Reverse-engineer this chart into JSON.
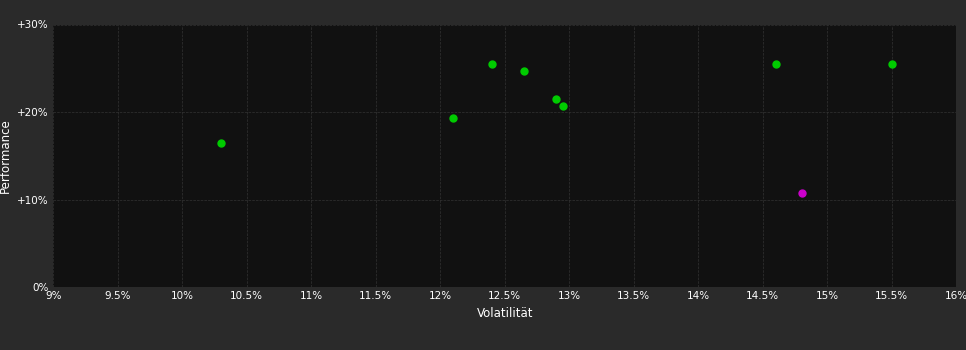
{
  "background_color": "#111111",
  "plot_bg_color": "#111111",
  "outer_bg_color": "#2a2a2a",
  "grid_color": "#333333",
  "grid_style": "--",
  "xlabel": "Volatilität",
  "ylabel": "Performance",
  "xlim": [
    0.09,
    0.16
  ],
  "ylim": [
    0.0,
    0.3
  ],
  "xticks": [
    0.09,
    0.095,
    0.1,
    0.105,
    0.11,
    0.115,
    0.12,
    0.125,
    0.13,
    0.135,
    0.14,
    0.145,
    0.15,
    0.155,
    0.16
  ],
  "xtick_labels": [
    "9%",
    "9.5%",
    "10%",
    "10.5%",
    "11%",
    "11.5%",
    "12%",
    "12.5%",
    "13%",
    "13.5%",
    "14%",
    "14.5%",
    "15%",
    "15.5%",
    "16%"
  ],
  "yticks": [
    0.0,
    0.1,
    0.2,
    0.3
  ],
  "ytick_labels": [
    "0%",
    "+10%",
    "+20%",
    "+30%"
  ],
  "green_points": [
    [
      0.103,
      0.165
    ],
    [
      0.124,
      0.255
    ],
    [
      0.1265,
      0.247
    ],
    [
      0.121,
      0.193
    ],
    [
      0.129,
      0.215
    ],
    [
      0.1295,
      0.207
    ],
    [
      0.146,
      0.255
    ],
    [
      0.155,
      0.255
    ]
  ],
  "magenta_points": [
    [
      0.148,
      0.108
    ]
  ],
  "green_color": "#00cc00",
  "magenta_color": "#cc00cc",
  "point_size": 25,
  "text_color": "#ffffff",
  "tick_fontsize": 7.5,
  "label_fontsize": 8.5
}
